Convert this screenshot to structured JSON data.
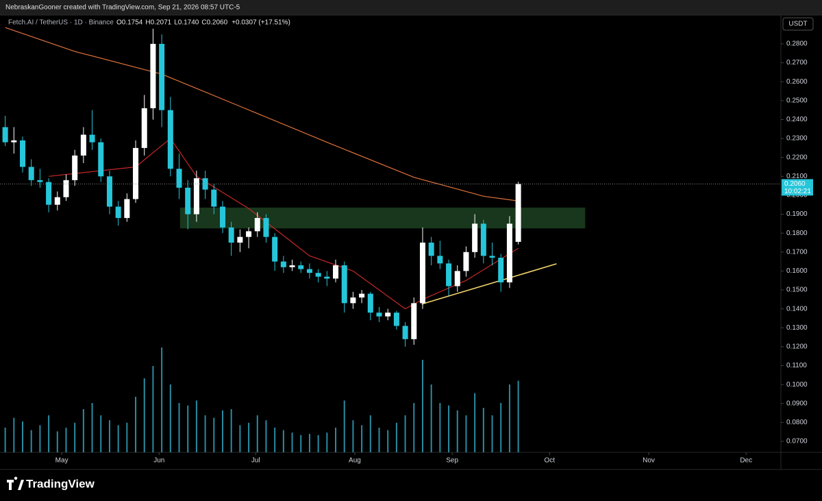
{
  "chart_data": {
    "type": "candlestick",
    "header": "NebraskanGooner created with TradingView.com, Sep 21, 2026 08:57 UTC-5",
    "symbol": "Fetch.AI / TetherUS · 1D · Binance",
    "ohlc_legend": [
      "O",
      "0.1754",
      "H",
      "0.2071",
      "L",
      "0.1740",
      "C",
      "0.2060"
    ],
    "change": "+0.0307 (+17.51%)",
    "currency": "USDT",
    "last_price_label": "0.2060",
    "countdown": "10:02:21",
    "brand": "TradingView",
    "up_color": "#ffffff",
    "down_color": "#26c6da",
    "candles": [
      [
        0.236,
        0.242,
        0.226,
        0.228
      ],
      [
        0.228,
        0.236,
        0.222,
        0.229
      ],
      [
        0.229,
        0.231,
        0.212,
        0.215
      ],
      [
        0.215,
        0.219,
        0.205,
        0.208
      ],
      [
        0.208,
        0.214,
        0.204,
        0.207
      ],
      [
        0.207,
        0.209,
        0.191,
        0.195
      ],
      [
        0.195,
        0.202,
        0.192,
        0.199
      ],
      [
        0.199,
        0.211,
        0.197,
        0.208
      ],
      [
        0.208,
        0.224,
        0.205,
        0.221
      ],
      [
        0.221,
        0.236,
        0.217,
        0.232
      ],
      [
        0.232,
        0.245,
        0.224,
        0.228
      ],
      [
        0.228,
        0.23,
        0.207,
        0.21
      ],
      [
        0.21,
        0.213,
        0.19,
        0.194
      ],
      [
        0.194,
        0.197,
        0.184,
        0.188
      ],
      [
        0.188,
        0.201,
        0.186,
        0.198
      ],
      [
        0.198,
        0.229,
        0.196,
        0.225
      ],
      [
        0.225,
        0.253,
        0.221,
        0.246
      ],
      [
        0.246,
        0.288,
        0.24,
        0.28
      ],
      [
        0.28,
        0.285,
        0.236,
        0.245
      ],
      [
        0.245,
        0.252,
        0.21,
        0.214
      ],
      [
        0.214,
        0.222,
        0.198,
        0.204
      ],
      [
        0.204,
        0.208,
        0.182,
        0.19
      ],
      [
        0.19,
        0.213,
        0.186,
        0.209
      ],
      [
        0.209,
        0.213,
        0.198,
        0.203
      ],
      [
        0.203,
        0.206,
        0.19,
        0.194
      ],
      [
        0.194,
        0.197,
        0.18,
        0.183
      ],
      [
        0.183,
        0.186,
        0.168,
        0.175
      ],
      [
        0.175,
        0.182,
        0.17,
        0.178
      ],
      [
        0.178,
        0.183,
        0.172,
        0.181
      ],
      [
        0.181,
        0.191,
        0.178,
        0.188
      ],
      [
        0.188,
        0.19,
        0.175,
        0.178
      ],
      [
        0.178,
        0.18,
        0.16,
        0.165
      ],
      [
        0.165,
        0.168,
        0.159,
        0.162
      ],
      [
        0.162,
        0.166,
        0.16,
        0.163
      ],
      [
        0.163,
        0.165,
        0.159,
        0.161
      ],
      [
        0.161,
        0.164,
        0.156,
        0.159
      ],
      [
        0.159,
        0.161,
        0.154,
        0.157
      ],
      [
        0.157,
        0.16,
        0.152,
        0.156
      ],
      [
        0.156,
        0.166,
        0.154,
        0.163
      ],
      [
        0.163,
        0.165,
        0.138,
        0.143
      ],
      [
        0.143,
        0.149,
        0.14,
        0.146
      ],
      [
        0.146,
        0.15,
        0.143,
        0.148
      ],
      [
        0.148,
        0.149,
        0.134,
        0.138
      ],
      [
        0.138,
        0.141,
        0.133,
        0.136
      ],
      [
        0.136,
        0.14,
        0.134,
        0.138
      ],
      [
        0.138,
        0.139,
        0.129,
        0.131
      ],
      [
        0.131,
        0.133,
        0.12,
        0.124
      ],
      [
        0.124,
        0.146,
        0.121,
        0.143
      ],
      [
        0.143,
        0.183,
        0.14,
        0.175
      ],
      [
        0.175,
        0.178,
        0.163,
        0.168
      ],
      [
        0.168,
        0.176,
        0.161,
        0.164
      ],
      [
        0.164,
        0.166,
        0.147,
        0.152
      ],
      [
        0.152,
        0.163,
        0.149,
        0.16
      ],
      [
        0.16,
        0.173,
        0.157,
        0.17
      ],
      [
        0.17,
        0.19,
        0.167,
        0.185
      ],
      [
        0.185,
        0.187,
        0.164,
        0.168
      ],
      [
        0.168,
        0.175,
        0.163,
        0.167
      ],
      [
        0.167,
        0.169,
        0.149,
        0.154
      ],
      [
        0.154,
        0.189,
        0.151,
        0.185
      ],
      [
        0.1754,
        0.2071,
        0.174,
        0.206
      ]
    ],
    "volume": [
      20,
      28,
      25,
      18,
      22,
      30,
      17,
      20,
      24,
      35,
      40,
      30,
      26,
      22,
      24,
      45,
      60,
      70,
      85,
      55,
      40,
      38,
      42,
      30,
      28,
      34,
      35,
      22,
      24,
      30,
      26,
      20,
      18,
      16,
      14,
      15,
      14,
      16,
      20,
      42,
      26,
      22,
      30,
      20,
      18,
      24,
      30,
      40,
      75,
      55,
      40,
      38,
      34,
      30,
      48,
      36,
      30,
      40,
      55,
      58
    ],
    "ma_slow": {
      "color": "#e0733a",
      "x": [
        0,
        8,
        18,
        27,
        37,
        47,
        55,
        59
      ],
      "values": [
        0.2886,
        0.276,
        0.264,
        0.247,
        0.228,
        0.2095,
        0.1995,
        0.197
      ]
    },
    "ma_fast": {
      "color": "#c62828",
      "x": [
        5,
        15,
        19,
        22,
        28,
        35,
        40,
        46,
        48,
        53,
        59
      ],
      "values": [
        0.21,
        0.215,
        0.23,
        0.21,
        0.193,
        0.168,
        0.16,
        0.14,
        0.145,
        0.155,
        0.172
      ]
    },
    "zone": {
      "color": "#1b3d1f",
      "x": [
        20.1,
        66.7
      ],
      "values": [
        0.1825,
        0.1935
      ]
    },
    "trendline": {
      "color": "#f5d76e",
      "x": [
        47.9,
        63.4
      ],
      "values": [
        0.1425,
        0.1638
      ]
    },
    "xlim": [
      -0.6,
      89.2
    ],
    "ylim": [
      0.0642,
      0.2952
    ],
    "xticks": [
      {
        "value": 6.5,
        "label": "May"
      },
      {
        "value": 17.7,
        "label": "Jun"
      },
      {
        "value": 28.8,
        "label": "Jul"
      },
      {
        "value": 40.2,
        "label": "Aug"
      },
      {
        "value": 51.4,
        "label": "Sep"
      },
      {
        "value": 62.6,
        "label": "Oct"
      },
      {
        "value": 74,
        "label": "Nov"
      },
      {
        "value": 85.2,
        "label": "Dec"
      }
    ],
    "yticks": [
      {
        "value": 0.07,
        "label": "0.0700"
      },
      {
        "value": 0.08,
        "label": "0.0800"
      },
      {
        "value": 0.09,
        "label": "0.0900"
      },
      {
        "value": 0.1,
        "label": "0.1000"
      },
      {
        "value": 0.11,
        "label": "0.1100"
      },
      {
        "value": 0.12,
        "label": "0.1200"
      },
      {
        "value": 0.13,
        "label": "0.1300"
      },
      {
        "value": 0.14,
        "label": "0.1400"
      },
      {
        "value": 0.15,
        "label": "0.1500"
      },
      {
        "value": 0.16,
        "label": "0.1600"
      },
      {
        "value": 0.17,
        "label": "0.1700"
      },
      {
        "value": 0.18,
        "label": "0.1800"
      },
      {
        "value": 0.19,
        "label": "0.1900"
      },
      {
        "value": 0.2,
        "label": "0.2000"
      },
      {
        "value": 0.21,
        "label": "0.2100"
      },
      {
        "value": 0.22,
        "label": "0.2200"
      },
      {
        "value": 0.23,
        "label": "0.2300"
      },
      {
        "value": 0.24,
        "label": "0.2400"
      },
      {
        "value": 0.25,
        "label": "0.2500"
      },
      {
        "value": 0.26,
        "label": "0.2600"
      },
      {
        "value": 0.27,
        "label": "0.2700"
      },
      {
        "value": 0.28,
        "label": "0.2800"
      }
    ]
  }
}
